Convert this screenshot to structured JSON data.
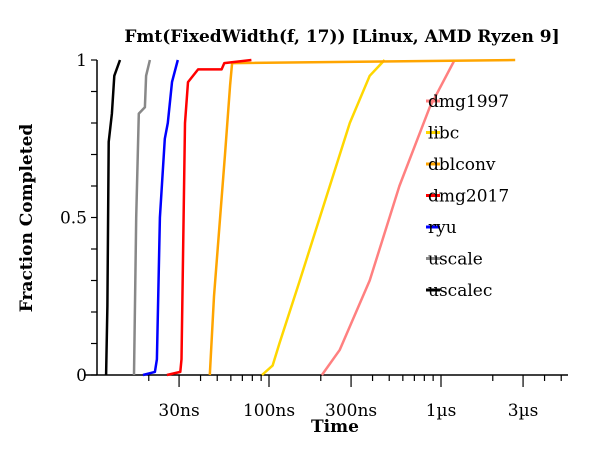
{
  "chart_data": {
    "type": "line",
    "title": "Fmt(FixedWidth(f, 17)) [Linux, AMD Ryzen 9]",
    "xlabel": "Time",
    "ylabel": "Fraction Completed",
    "xscale": "log",
    "xlim_ns": [
      10,
      5500
    ],
    "ylim": [
      0,
      1
    ],
    "x_ticks": [
      {
        "value_ns": 30,
        "label": "30ns"
      },
      {
        "value_ns": 100,
        "label": "100ns"
      },
      {
        "value_ns": 300,
        "label": "300ns"
      },
      {
        "value_ns": 1000,
        "label": "1µs"
      },
      {
        "value_ns": 3000,
        "label": "3µs"
      }
    ],
    "y_ticks": [
      {
        "value": 0,
        "label": "0"
      },
      {
        "value": 0.5,
        "label": "0.5"
      },
      {
        "value": 1,
        "label": "1"
      }
    ],
    "legend_position": "right",
    "series": [
      {
        "name": "dmg1997",
        "color": "#ff8080",
        "points": [
          [
            203,
            0
          ],
          [
            258,
            0.08
          ],
          [
            385,
            0.3
          ],
          [
            573,
            0.6
          ],
          [
            860,
            0.85
          ],
          [
            1200,
            1
          ]
        ]
      },
      {
        "name": "libc",
        "color": "#ffd700",
        "points": [
          [
            91,
            0
          ],
          [
            105,
            0.03
          ],
          [
            115,
            0.1
          ],
          [
            151,
            0.3
          ],
          [
            211,
            0.55
          ],
          [
            295,
            0.8
          ],
          [
            385,
            0.95
          ],
          [
            470,
            1
          ]
        ]
      },
      {
        "name": "dblconv",
        "color": "#ffa500",
        "points": [
          [
            45.3,
            0
          ],
          [
            47.9,
            0.25
          ],
          [
            55.5,
            0.7
          ],
          [
            59.4,
            0.92
          ],
          [
            61,
            0.99
          ],
          [
            2700,
            1
          ]
        ]
      },
      {
        "name": "dmg2017",
        "color": "#ff0000",
        "points": [
          [
            25.5,
            0
          ],
          [
            30.5,
            0.01
          ],
          [
            31,
            0.05
          ],
          [
            32.5,
            0.8
          ],
          [
            33.8,
            0.93
          ],
          [
            38.7,
            0.97
          ],
          [
            53,
            0.97
          ],
          [
            55,
            0.99
          ],
          [
            79,
            1
          ]
        ]
      },
      {
        "name": "ryu",
        "color": "#0000ff",
        "points": [
          [
            18.5,
            0
          ],
          [
            21.7,
            0.01
          ],
          [
            22.3,
            0.05
          ],
          [
            23.2,
            0.5
          ],
          [
            24.8,
            0.75
          ],
          [
            25.8,
            0.8
          ],
          [
            27.3,
            0.93
          ],
          [
            29.5,
            1
          ]
        ]
      },
      {
        "name": "uscale",
        "color": "#888888",
        "points": [
          [
            16.4,
            0
          ],
          [
            16.9,
            0.5
          ],
          [
            17.5,
            0.83
          ],
          [
            19,
            0.85
          ],
          [
            19.3,
            0.95
          ],
          [
            20.3,
            1
          ]
        ]
      },
      {
        "name": "uscalec",
        "color": "#000000",
        "points": [
          [
            11.3,
            0
          ],
          [
            11.5,
            0.22
          ],
          [
            11.7,
            0.74
          ],
          [
            12.2,
            0.83
          ],
          [
            12.6,
            0.95
          ],
          [
            13.6,
            1
          ]
        ]
      }
    ]
  }
}
